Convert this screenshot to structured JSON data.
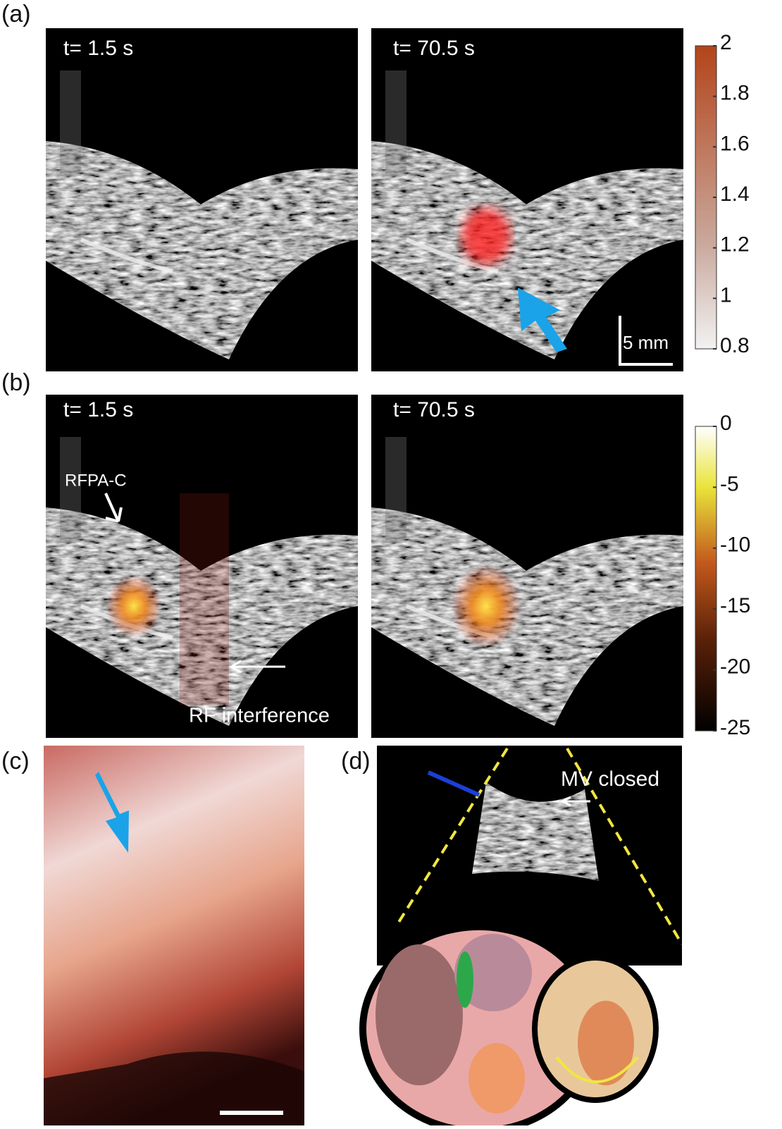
{
  "figure": {
    "panel_labels": [
      "(a)",
      "(b)",
      "(c)",
      "(d)"
    ],
    "panel_a": {
      "left_time": "t= 1.5 s",
      "right_time": "t= 70.5 s",
      "scale_bar": "5 mm"
    },
    "panel_b": {
      "left_time": "t= 1.5 s",
      "right_time": "t= 70.5 s",
      "annotations": [
        "RFPA-C",
        "RF interference"
      ]
    },
    "panel_d": {
      "annotation": "MV closed"
    },
    "colorbars": [
      {
        "lim": [
          0.8,
          2
        ],
        "ticks": [
          0.8,
          1,
          1.2,
          1.4,
          1.6,
          1.8,
          2
        ]
      },
      {
        "lim": [
          -25,
          0
        ],
        "ticks": [
          -25,
          -20,
          -15,
          -10,
          -5,
          0
        ]
      }
    ]
  }
}
